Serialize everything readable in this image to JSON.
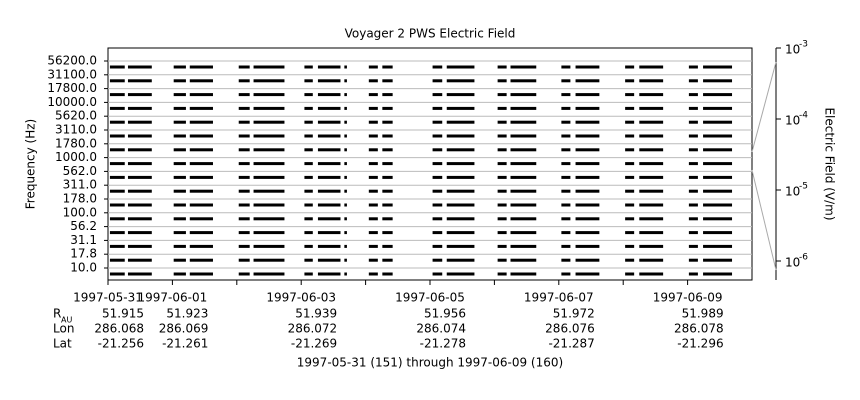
{
  "chart_data": {
    "type": "channel-stack",
    "title": "Voyager 2 PWS Electric Field",
    "ylabel": "Frequency (Hz)",
    "y2label": "Electric Field (V/m)",
    "channels": [
      "56200.0",
      "31100.0",
      "17800.0",
      "10000.0",
      "5620.0",
      "3110.0",
      "1780.0",
      "1000.0",
      "562.0",
      "311.0",
      "178.0",
      "100.0",
      "56.2",
      "31.1",
      "17.8",
      "10.0"
    ],
    "xlim": [
      151,
      161
    ],
    "xticks": [
      {
        "value": 151,
        "label": "1997-05-31"
      },
      {
        "value": 152,
        "label": "1997-06-01"
      },
      {
        "value": 154,
        "label": "1997-06-03"
      },
      {
        "value": 156,
        "label": "1997-06-05"
      },
      {
        "value": 158,
        "label": "1997-06-07"
      },
      {
        "value": 160,
        "label": "1997-06-09"
      }
    ],
    "xminor": [
      153,
      155,
      157,
      159
    ],
    "y2lim": [
      5.4e-07,
      0.001
    ],
    "y2ticks": [
      {
        "value": 0.001,
        "label": "10",
        "exponent": "-3"
      },
      {
        "value": 0.0001,
        "label": "10",
        "exponent": "-4"
      },
      {
        "value": 1e-05,
        "label": "10",
        "exponent": "-5"
      },
      {
        "value": 1e-06,
        "label": "10",
        "exponent": "-6"
      }
    ],
    "intervals": [
      [
        151.03,
        151.26
      ],
      [
        151.31,
        151.68
      ],
      [
        152.02,
        152.21
      ],
      [
        152.27,
        152.63
      ],
      [
        153.03,
        153.2
      ],
      [
        153.26,
        153.74
      ],
      [
        154.05,
        154.18
      ],
      [
        154.26,
        154.61
      ],
      [
        154.67,
        154.71
      ],
      [
        155.05,
        155.19
      ],
      [
        155.26,
        155.42
      ],
      [
        156.04,
        156.19
      ],
      [
        156.26,
        156.69
      ],
      [
        157.05,
        157.19
      ],
      [
        157.25,
        157.65
      ],
      [
        158.04,
        158.18
      ],
      [
        158.26,
        158.63
      ],
      [
        159.03,
        159.17
      ],
      [
        159.25,
        159.62
      ],
      [
        160.02,
        160.16
      ],
      [
        160.24,
        160.69
      ]
    ],
    "ephemeris": {
      "labels": {
        "r": "R",
        "r_sub": "AU",
        "lon": "Lon",
        "lat": "Lat"
      },
      "r": [
        "51.915",
        "51.923",
        "51.939",
        "51.956",
        "51.972",
        "51.989"
      ],
      "lon": [
        "286.068",
        "286.069",
        "286.072",
        "286.074",
        "286.076",
        "286.078"
      ],
      "lat": [
        "-21.256",
        "-21.261",
        "-21.269",
        "-21.278",
        "-21.287",
        "-21.296"
      ]
    },
    "footer": "1997-05-31 (151) through 1997-06-09 (160)"
  }
}
